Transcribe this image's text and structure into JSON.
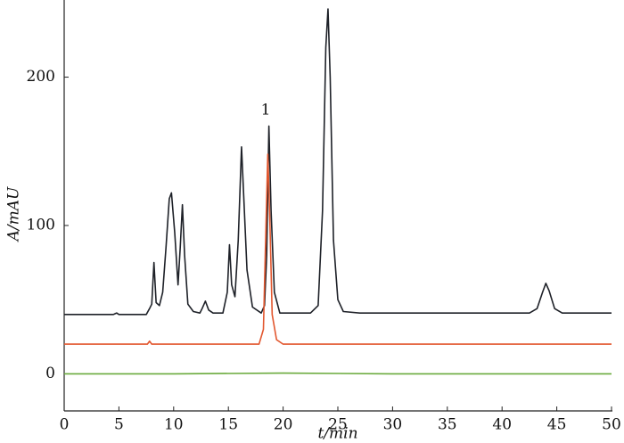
{
  "chart_data": {
    "type": "line",
    "xlabel": "t/min",
    "ylabel": "A/mAU",
    "annotations": [
      "1"
    ],
    "xlim": [
      0,
      50
    ],
    "xticks": [
      0,
      5,
      10,
      15,
      20,
      25,
      30,
      35,
      40,
      45,
      50
    ],
    "ylim": [
      -25,
      252
    ],
    "yticks": [
      0,
      100,
      200
    ],
    "grid": false,
    "series": [
      {
        "color": "#1e2128",
        "x": [
          0,
          4.5,
          4.8,
          5.0,
          7.5,
          7.8,
          8.0,
          8.2,
          8.4,
          8.7,
          9.0,
          9.3,
          9.6,
          9.8,
          10.1,
          10.4,
          10.6,
          10.8,
          11.0,
          11.3,
          11.8,
          12.4,
          12.6,
          12.9,
          13.2,
          13.6,
          14.5,
          14.9,
          15.1,
          15.3,
          15.6,
          15.9,
          16.2,
          16.4,
          16.7,
          17.2,
          18.0,
          18.3,
          18.5,
          18.7,
          18.9,
          19.2,
          19.7,
          22.5,
          23.2,
          23.6,
          23.9,
          24.1,
          24.3,
          24.6,
          25.0,
          25.5,
          27.0,
          42.5,
          43.2,
          43.7,
          44.0,
          44.3,
          44.8,
          45.5,
          50
        ],
        "values": [
          40,
          40,
          41,
          40,
          40,
          44,
          47,
          75,
          48,
          46,
          55,
          85,
          118,
          122,
          95,
          60,
          85,
          114,
          80,
          47,
          42,
          41,
          44,
          49,
          43,
          41,
          41,
          55,
          87,
          60,
          52,
          90,
          153,
          120,
          70,
          45,
          41,
          46,
          80,
          167,
          110,
          55,
          41,
          41,
          46,
          110,
          220,
          246,
          200,
          90,
          50,
          42,
          41,
          41,
          44,
          55,
          61,
          56,
          44,
          41,
          41
        ]
      },
      {
        "color": "#e2572f",
        "x": [
          0,
          7.6,
          7.8,
          8.0,
          17.8,
          18.2,
          18.4,
          18.6,
          18.8,
          19.0,
          19.4,
          20,
          50
        ],
        "values": [
          20,
          20,
          22,
          20,
          20,
          30,
          90,
          148,
          100,
          40,
          23,
          20,
          20
        ]
      },
      {
        "color": "#6aaa3c",
        "x": [
          0,
          10,
          20,
          30,
          40,
          50
        ],
        "values": [
          0,
          0,
          0.5,
          0,
          0,
          0
        ]
      }
    ]
  }
}
